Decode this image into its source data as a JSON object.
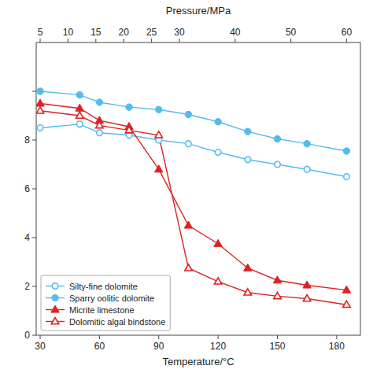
{
  "chart_data": {
    "type": "line",
    "xlabel": "Temperature/°C",
    "x2label": "Pressure/MPa",
    "x": [
      30,
      50,
      60,
      75,
      90,
      105,
      120,
      135,
      150,
      165,
      185
    ],
    "series": [
      {
        "name": "Silty-fine dolomite",
        "color": "#55BBEE",
        "marker": "circle-open",
        "values": [
          8.5,
          8.65,
          8.3,
          8.2,
          8.0,
          7.85,
          7.5,
          7.2,
          7.0,
          6.8,
          6.5
        ]
      },
      {
        "name": "Sparry oolitic dolomite",
        "color": "#55BBEE",
        "marker": "circle",
        "values": [
          10.0,
          9.85,
          9.55,
          9.35,
          9.25,
          9.05,
          8.75,
          8.35,
          8.05,
          7.85,
          7.55
        ]
      },
      {
        "name": "Micrite limestone",
        "color": "#DD2222",
        "marker": "triangle",
        "values": [
          9.5,
          9.3,
          8.8,
          8.55,
          6.8,
          4.5,
          3.75,
          2.75,
          2.25,
          2.05,
          1.85
        ]
      },
      {
        "name": "Dolomitic algal bindstone",
        "color": "#DD2222",
        "marker": "triangle-open",
        "values": [
          9.2,
          9.0,
          8.6,
          8.4,
          8.2,
          2.75,
          2.2,
          1.75,
          1.6,
          1.5,
          1.25
        ]
      }
    ],
    "xlim": [
      28,
      192
    ],
    "xticks": [
      30,
      60,
      90,
      120,
      150,
      180
    ],
    "x2lim": [
      4.290322580645161,
      62.483870967741936
    ],
    "x2ticks": [
      5,
      10,
      15,
      20,
      25,
      30,
      40,
      50,
      60
    ],
    "ylim": [
      0,
      12
    ],
    "yticks": [
      0,
      2,
      4,
      6,
      8,
      {
        "value": 10,
        "label": null
      }
    ],
    "grid": false,
    "legend": "lower left"
  }
}
